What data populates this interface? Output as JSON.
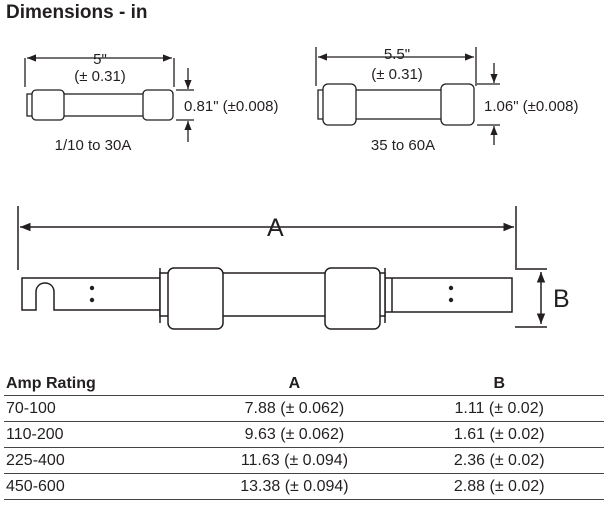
{
  "heading": "Dimensions - in",
  "fuse_small": {
    "length": "5\"",
    "length_tol": "(± 0.31)",
    "diameter": "0.81\" (±0.008)",
    "range": "1/10 to 30A"
  },
  "fuse_large": {
    "length": "5.5\"",
    "length_tol": "(± 0.31)",
    "diameter": "1.06\" (±0.008)",
    "range": "35 to 60A"
  },
  "blade_fuse": {
    "dim_a": "A",
    "dim_b": "B"
  },
  "table": {
    "headers": [
      "Amp Rating",
      "A",
      "B"
    ],
    "rows": [
      [
        "70-100",
        "7.88 (± 0.062)",
        "1.11 (± 0.02)"
      ],
      [
        "110-200",
        "9.63 (± 0.062)",
        "1.61 (± 0.02)"
      ],
      [
        "225-400",
        "11.63 (± 0.094)",
        "2.36 (± 0.02)"
      ],
      [
        "450-600",
        "13.38 (± 0.094)",
        "2.88 (± 0.02)"
      ]
    ]
  }
}
